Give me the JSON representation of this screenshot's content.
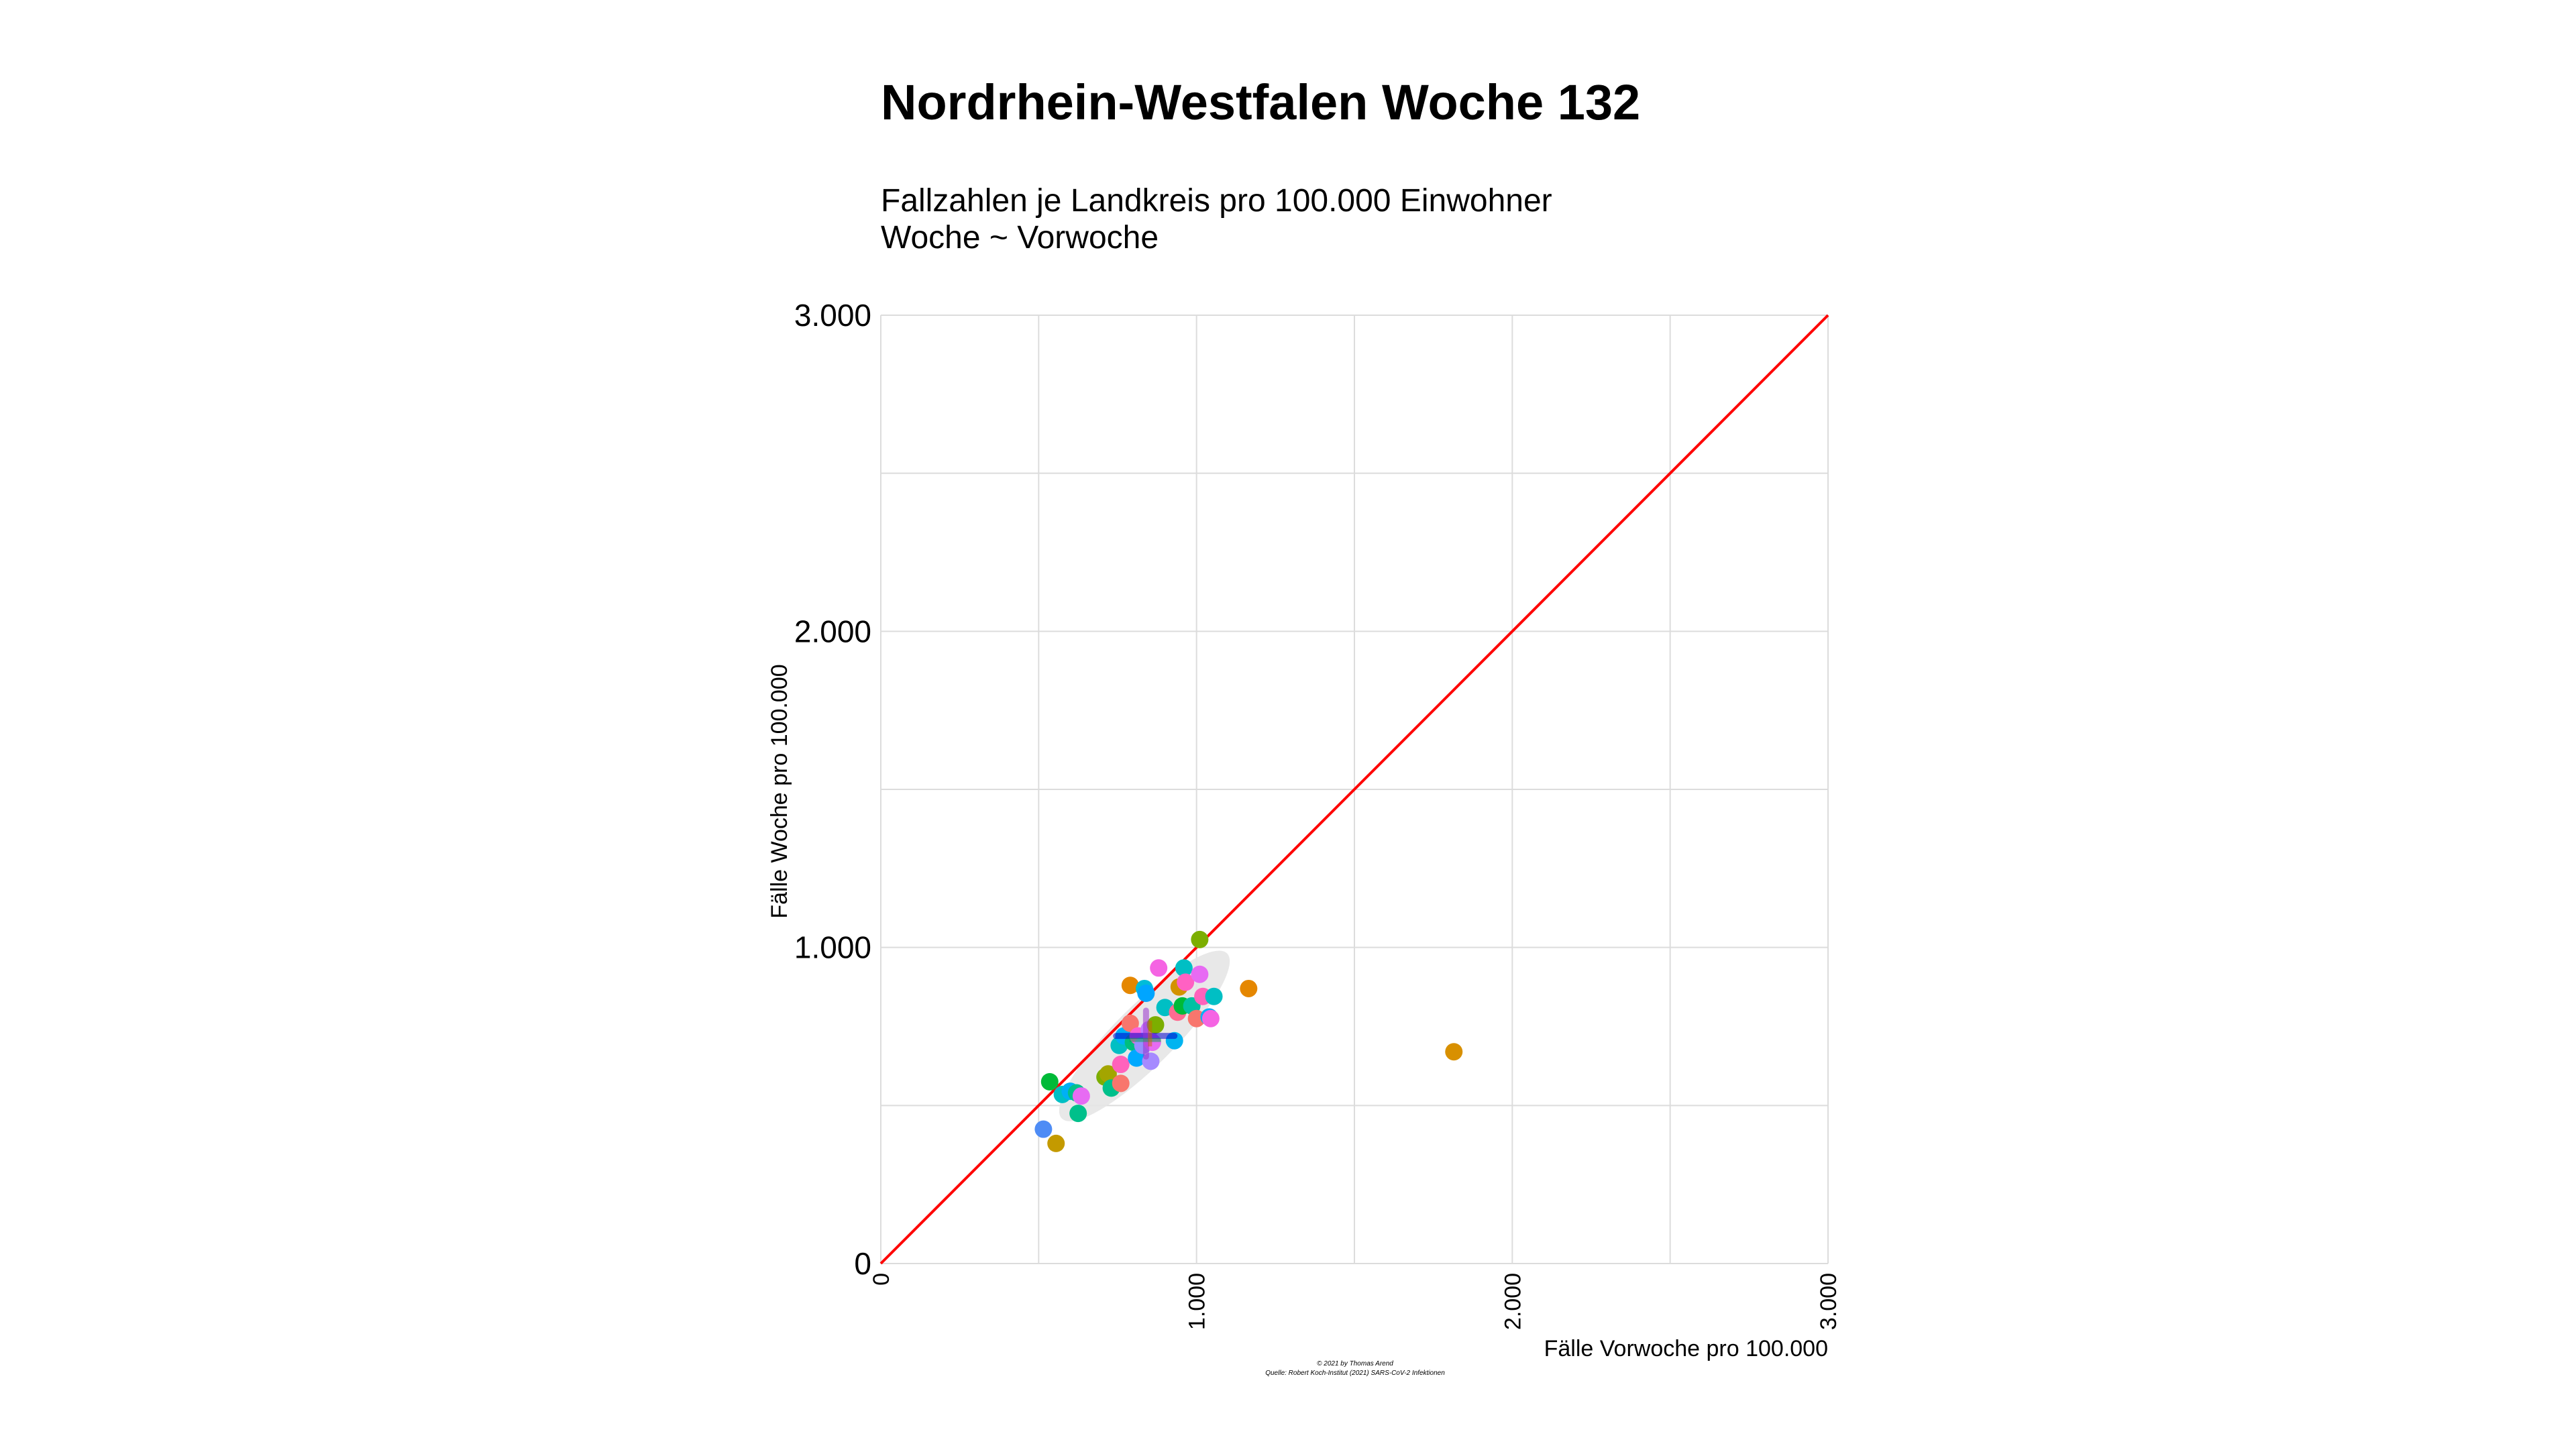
{
  "chart_data": {
    "type": "scatter",
    "title": "Nordrhein-Westfalen Woche 132",
    "subtitle_lines": [
      "Fallzahlen je Landkreis pro 100.000 Einwohner",
      "Woche ~ Vorwoche"
    ],
    "xlabel": "Fälle Vorwoche pro 100.000",
    "ylabel": "Fälle Woche pro 100.000",
    "xlim": [
      0,
      3000
    ],
    "ylim": [
      0,
      3000
    ],
    "x_ticks": [
      0,
      1000,
      2000,
      3000
    ],
    "x_tick_labels": [
      "0",
      "1.000",
      "2.000",
      "3.000"
    ],
    "y_ticks": [
      0,
      1000,
      2000,
      3000
    ],
    "y_tick_labels": [
      "0",
      "1.000",
      "2.000",
      "3.000"
    ],
    "grid": true,
    "legend": "none",
    "reference_line": {
      "x": [
        0,
        3000
      ],
      "y": [
        0,
        3000
      ],
      "color": "#ff0000"
    },
    "ellipse": {
      "cx": 835,
      "cy": 720,
      "rx": 370,
      "ry": 95,
      "angle_deg": 45,
      "color": "#e5e5e5"
    },
    "mean_cross": {
      "x": 840,
      "y": 720,
      "x_range": [
        745,
        930
      ],
      "y_range": [
        655,
        800
      ],
      "colors": [
        "#0000cc",
        "#00aa44",
        "#9933cc",
        "#cc6600"
      ]
    },
    "points": [
      {
        "x": 515,
        "y": 425,
        "color": "#4e8cf5"
      },
      {
        "x": 555,
        "y": 380,
        "color": "#c49a00"
      },
      {
        "x": 535,
        "y": 575,
        "color": "#00ba38"
      },
      {
        "x": 575,
        "y": 535,
        "color": "#00bfc4"
      },
      {
        "x": 600,
        "y": 545,
        "color": "#00b0f6"
      },
      {
        "x": 620,
        "y": 540,
        "color": "#00c08b"
      },
      {
        "x": 625,
        "y": 475,
        "color": "#00c08b"
      },
      {
        "x": 635,
        "y": 530,
        "color": "#e76bf3"
      },
      {
        "x": 710,
        "y": 590,
        "color": "#7cae00"
      },
      {
        "x": 720,
        "y": 600,
        "color": "#a3a500"
      },
      {
        "x": 730,
        "y": 555,
        "color": "#00c08b"
      },
      {
        "x": 760,
        "y": 570,
        "color": "#f8766d"
      },
      {
        "x": 760,
        "y": 630,
        "color": "#ff62bc"
      },
      {
        "x": 755,
        "y": 690,
        "color": "#00bfc4"
      },
      {
        "x": 770,
        "y": 720,
        "color": "#00b0f6"
      },
      {
        "x": 790,
        "y": 880,
        "color": "#e58700"
      },
      {
        "x": 790,
        "y": 760,
        "color": "#f8766d"
      },
      {
        "x": 800,
        "y": 700,
        "color": "#00bf7d"
      },
      {
        "x": 810,
        "y": 650,
        "color": "#00a9ff"
      },
      {
        "x": 815,
        "y": 720,
        "color": "#fb61d7"
      },
      {
        "x": 830,
        "y": 690,
        "color": "#9590ff"
      },
      {
        "x": 835,
        "y": 870,
        "color": "#00bcd8"
      },
      {
        "x": 840,
        "y": 855,
        "color": "#00a5ff"
      },
      {
        "x": 850,
        "y": 740,
        "color": "#c77cff"
      },
      {
        "x": 855,
        "y": 640,
        "color": "#a58aff"
      },
      {
        "x": 860,
        "y": 700,
        "color": "#e76bf3"
      },
      {
        "x": 870,
        "y": 755,
        "color": "#7cae00"
      },
      {
        "x": 880,
        "y": 935,
        "color": "#f564e3"
      },
      {
        "x": 900,
        "y": 810,
        "color": "#00bfc4"
      },
      {
        "x": 930,
        "y": 705,
        "color": "#00b4f0"
      },
      {
        "x": 940,
        "y": 795,
        "color": "#ff6c91"
      },
      {
        "x": 945,
        "y": 875,
        "color": "#d39200"
      },
      {
        "x": 955,
        "y": 815,
        "color": "#00ba38"
      },
      {
        "x": 960,
        "y": 935,
        "color": "#00bfc4"
      },
      {
        "x": 965,
        "y": 890,
        "color": "#ff61c3"
      },
      {
        "x": 985,
        "y": 815,
        "color": "#00c1a3"
      },
      {
        "x": 1000,
        "y": 775,
        "color": "#f8766d"
      },
      {
        "x": 1010,
        "y": 915,
        "color": "#e76bf3"
      },
      {
        "x": 1010,
        "y": 1025,
        "color": "#7cae00"
      },
      {
        "x": 1020,
        "y": 845,
        "color": "#ff62bc"
      },
      {
        "x": 1040,
        "y": 780,
        "color": "#00b0f6"
      },
      {
        "x": 1045,
        "y": 775,
        "color": "#f564e3"
      },
      {
        "x": 1055,
        "y": 845,
        "color": "#00bfc4"
      },
      {
        "x": 1165,
        "y": 870,
        "color": "#e58700"
      },
      {
        "x": 1815,
        "y": 670,
        "color": "#d89000"
      }
    ],
    "footer_lines": [
      "© 2021 by Thomas Arend",
      "Quelle: Robert Koch-Institut (2021) SARS-CoV-2 Infektionen"
    ]
  }
}
